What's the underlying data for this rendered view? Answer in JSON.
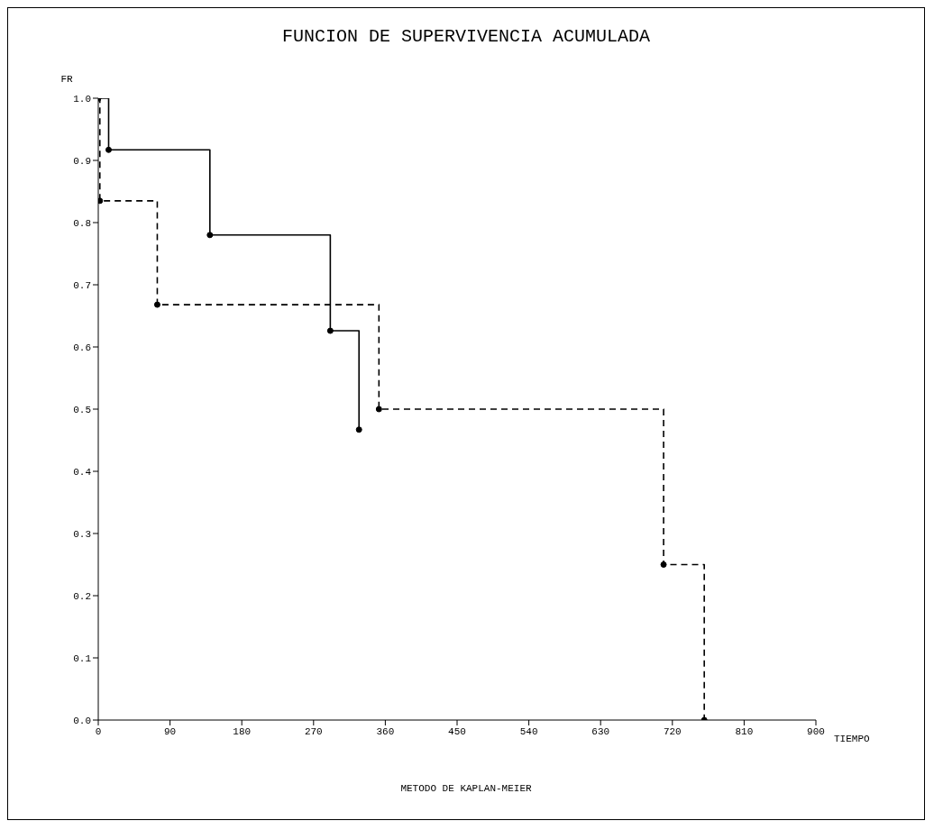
{
  "chart_data": {
    "type": "step",
    "title": "FUNCION DE SUPERVIVENCIA ACUMULADA",
    "xlabel": "TIEMPO",
    "ylabel": "FR",
    "annotations": [
      "METODO DE KAPLAN-MEIER"
    ],
    "series": [
      {
        "color": "#000000",
        "line_style": "solid",
        "x": [
          0,
          13,
          140,
          291,
          327
        ],
        "values": [
          1.0,
          0.917,
          0.78,
          0.626,
          0.467
        ]
      },
      {
        "color": "#000000",
        "line_style": "dashed",
        "x": [
          0,
          2,
          74,
          352,
          709,
          760
        ],
        "values": [
          1.0,
          0.835,
          0.668,
          0.5,
          0.25,
          0
        ]
      }
    ],
    "xlim": [
      0,
      900
    ],
    "xticks": [
      0,
      90,
      180,
      270,
      360,
      450,
      540,
      630,
      720,
      810,
      900
    ],
    "ylim": [
      0,
      1
    ],
    "yticks": [
      {
        "value": 0,
        "label": "0.0"
      },
      {
        "value": 0.1,
        "label": "0.1"
      },
      {
        "value": 0.2,
        "label": "0.2"
      },
      {
        "value": 0.3,
        "label": "0.3"
      },
      {
        "value": 0.4,
        "label": "0.4"
      },
      {
        "value": 0.5,
        "label": "0.5"
      },
      {
        "value": 0.6,
        "label": "0.6"
      },
      {
        "value": 0.7,
        "label": "0.7"
      },
      {
        "value": 0.8,
        "label": "0.8"
      },
      {
        "value": 0.9,
        "label": "0.9"
      },
      {
        "value": 1,
        "label": "1.0"
      }
    ],
    "marker": "circle",
    "grid": false,
    "legend": false
  }
}
